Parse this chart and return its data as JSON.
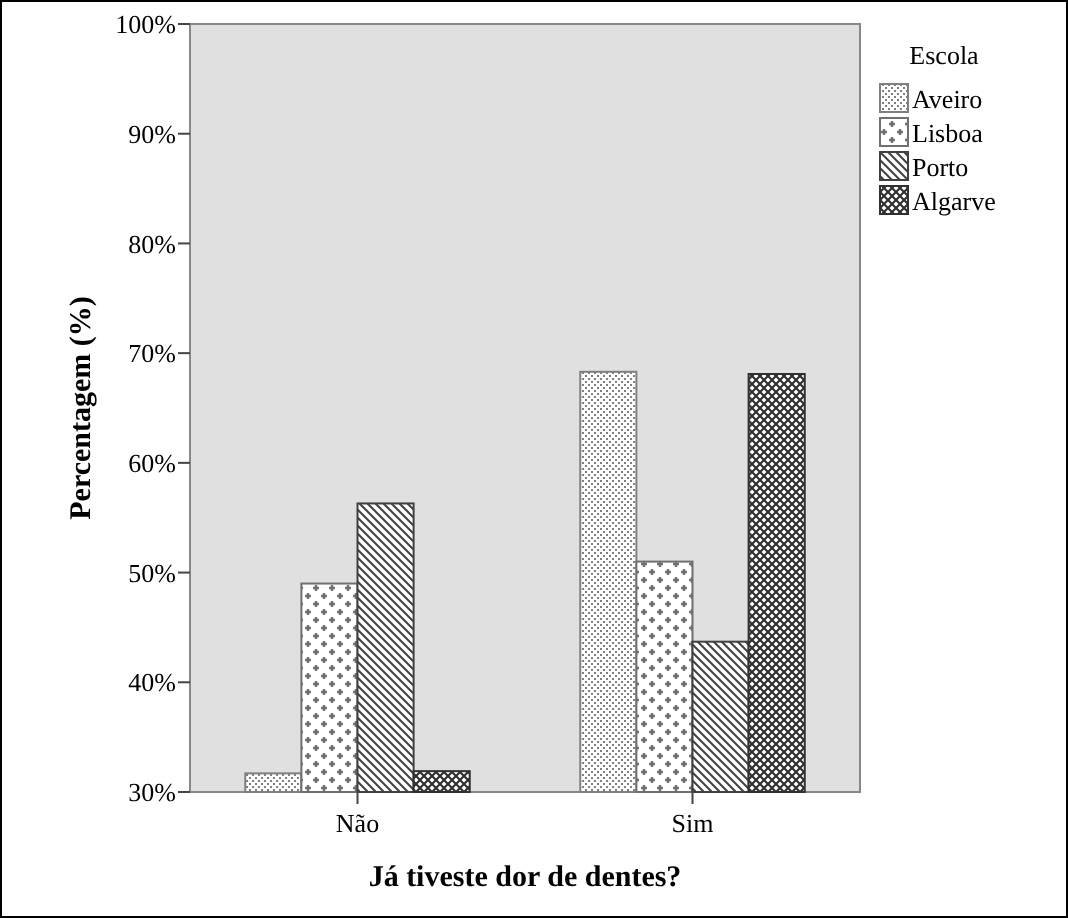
{
  "chart_data": {
    "type": "bar",
    "xlabel": "Já tiveste dor de dentes?",
    "ylabel": "Percentagem (%)",
    "legend_title": "Escola",
    "legend": "top right",
    "categories": [
      "Não",
      "Sim"
    ],
    "series": [
      {
        "name": "Aveiro",
        "color": "#808080",
        "values": [
          31.7,
          68.3
        ]
      },
      {
        "name": "Lisboa",
        "color": "#707070",
        "values": [
          49,
          51
        ]
      },
      {
        "name": "Porto",
        "color": "#404040",
        "values": [
          56.3,
          43.7
        ]
      },
      {
        "name": "Algarve",
        "color": "#303030",
        "values": [
          31.9,
          68.1
        ]
      }
    ],
    "ylim": [
      30,
      100
    ],
    "yticks": [
      {
        "value": 30,
        "label": "30%"
      },
      {
        "value": 40,
        "label": "40%"
      },
      {
        "value": 50,
        "label": "50%"
      },
      {
        "value": 60,
        "label": "60%"
      },
      {
        "value": 70,
        "label": "70%"
      },
      {
        "value": 80,
        "label": "80%"
      },
      {
        "value": 90,
        "label": "90%"
      },
      {
        "value": 100,
        "label": "100%"
      }
    ],
    "grid": false
  }
}
